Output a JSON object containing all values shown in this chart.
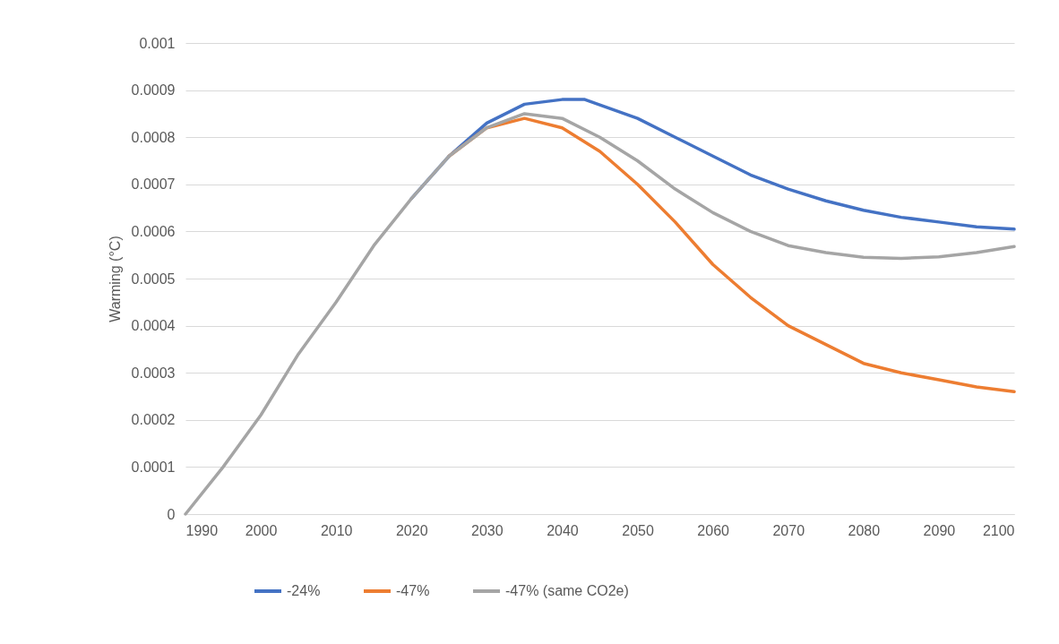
{
  "chart_data": {
    "type": "line",
    "ylabel": "Warming (°C)",
    "xlim": [
      1990,
      2100
    ],
    "xticks": [
      1990,
      2000,
      2010,
      2020,
      2030,
      2040,
      2050,
      2060,
      2070,
      2080,
      2090,
      2100
    ],
    "ylim": [
      0,
      0.001
    ],
    "yticks": [
      0,
      0.0001,
      0.0002,
      0.0003,
      0.0004,
      0.0005,
      0.0006,
      0.0007,
      0.0008,
      0.0009,
      0.001
    ],
    "grid": "y",
    "legend": "bottom",
    "marker": "none",
    "line_style": "solid",
    "series": [
      {
        "name": "-24%",
        "color": "#4472c4",
        "x": [
          2020,
          2025,
          2030,
          2035,
          2040,
          2043,
          2050,
          2055,
          2060,
          2065,
          2070,
          2075,
          2080,
          2085,
          2090,
          2095,
          2100
        ],
        "values": [
          0.00067,
          0.00076,
          0.00083,
          0.00087,
          0.00088,
          0.00088,
          0.00084,
          0.0008,
          0.00076,
          0.00072,
          0.00069,
          0.000665,
          0.000645,
          0.00063,
          0.00062,
          0.00061,
          0.000605
        ]
      },
      {
        "name": "-47%",
        "color": "#ed7d31",
        "x": [
          2025,
          2030,
          2035,
          2040,
          2045,
          2050,
          2055,
          2060,
          2065,
          2070,
          2075,
          2080,
          2085,
          2090,
          2095,
          2100
        ],
        "values": [
          0.00076,
          0.00082,
          0.00084,
          0.00082,
          0.00077,
          0.0007,
          0.00062,
          0.00053,
          0.00046,
          0.0004,
          0.00036,
          0.00032,
          0.0003,
          0.000285,
          0.00027,
          0.00026
        ]
      },
      {
        "name": "-47% (same CO2e)",
        "color": "#a5a5a5",
        "x": [
          1990,
          1995,
          2000,
          2005,
          2010,
          2015,
          2020,
          2025,
          2030,
          2035,
          2040,
          2045,
          2050,
          2055,
          2060,
          2065,
          2070,
          2075,
          2080,
          2085,
          2090,
          2095,
          2100
        ],
        "values": [
          0,
          0.0001,
          0.00021,
          0.00034,
          0.00045,
          0.00057,
          0.00067,
          0.00076,
          0.00082,
          0.00085,
          0.00084,
          0.0008,
          0.00075,
          0.00069,
          0.00064,
          0.0006,
          0.00057,
          0.000555,
          0.000545,
          0.000543,
          0.000546,
          0.000555,
          0.000568
        ]
      }
    ]
  }
}
